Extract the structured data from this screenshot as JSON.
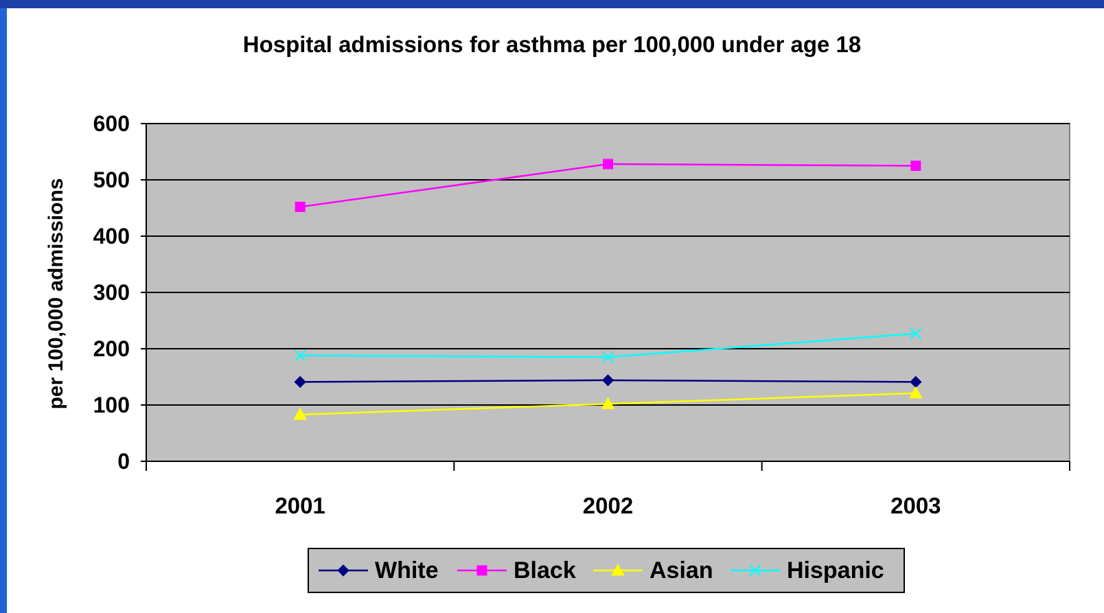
{
  "chart_data": {
    "type": "line",
    "title": "Hospital admissions for asthma per 100,000 under age 18",
    "xlabel": "",
    "ylabel": "per 100,000 admissions",
    "categories": [
      "2001",
      "2002",
      "2003"
    ],
    "ylim": [
      0,
      600
    ],
    "yticks": [
      "0",
      "100",
      "200",
      "300",
      "400",
      "500",
      "600"
    ],
    "grid": true,
    "legend_position": "bottom",
    "plot_background": "#c0c0c0",
    "series": [
      {
        "name": "White",
        "values": [
          141,
          144,
          141
        ],
        "color": "#000080",
        "marker": "diamond"
      },
      {
        "name": "Black",
        "values": [
          452,
          528,
          525
        ],
        "color": "#ff00ff",
        "marker": "square"
      },
      {
        "name": "Asian",
        "values": [
          83,
          102,
          121
        ],
        "color": "#ffff00",
        "marker": "triangle"
      },
      {
        "name": "Hispanic",
        "values": [
          188,
          185,
          227
        ],
        "color": "#00ffff",
        "marker": "x"
      }
    ]
  }
}
